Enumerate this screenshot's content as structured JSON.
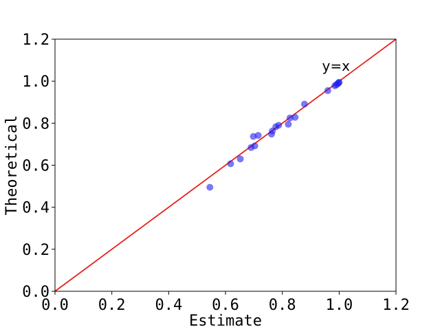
{
  "chart_data": {
    "type": "scatter",
    "xlabel": "Estimate",
    "ylabel": "Theoretical",
    "xlim": [
      0.0,
      1.2
    ],
    "ylim": [
      0.0,
      1.2
    ],
    "xticks": [
      "0.0",
      "0.2",
      "0.4",
      "0.6",
      "0.8",
      "1.0",
      "1.2"
    ],
    "yticks": [
      "0.0",
      "0.2",
      "0.4",
      "0.6",
      "0.8",
      "1.0",
      "1.2"
    ],
    "grid": false,
    "reference_line": {
      "label": "y=x",
      "color": "#e8201a",
      "from": [
        0.0,
        0.0
      ],
      "to": [
        1.2,
        1.2
      ]
    },
    "annotation": {
      "text": "y=x",
      "x": 0.94,
      "y": 1.05
    },
    "points_color": "#2020f0",
    "points": [
      {
        "x": 0.545,
        "y": 0.495
      },
      {
        "x": 0.618,
        "y": 0.607
      },
      {
        "x": 0.652,
        "y": 0.63
      },
      {
        "x": 0.69,
        "y": 0.684
      },
      {
        "x": 0.703,
        "y": 0.692
      },
      {
        "x": 0.698,
        "y": 0.737
      },
      {
        "x": 0.715,
        "y": 0.742
      },
      {
        "x": 0.762,
        "y": 0.748
      },
      {
        "x": 0.765,
        "y": 0.763
      },
      {
        "x": 0.777,
        "y": 0.783
      },
      {
        "x": 0.787,
        "y": 0.79
      },
      {
        "x": 0.821,
        "y": 0.795
      },
      {
        "x": 0.827,
        "y": 0.825
      },
      {
        "x": 0.845,
        "y": 0.828
      },
      {
        "x": 0.878,
        "y": 0.891
      },
      {
        "x": 0.96,
        "y": 0.955
      },
      {
        "x": 0.985,
        "y": 0.978
      },
      {
        "x": 0.99,
        "y": 0.983
      },
      {
        "x": 0.995,
        "y": 0.988
      },
      {
        "x": 0.998,
        "y": 0.992
      },
      {
        "x": 1.0,
        "y": 0.995
      }
    ]
  }
}
